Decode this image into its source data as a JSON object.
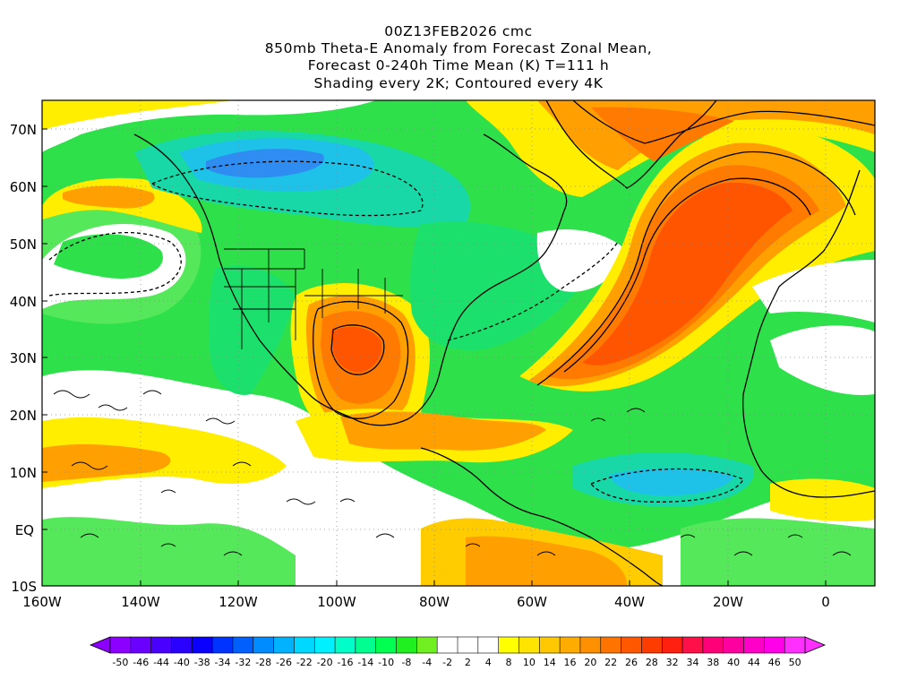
{
  "title": {
    "line1": "00Z13FEB2026 cmc",
    "line2": "850mb Theta-E Anomaly from Forecast Zonal Mean,",
    "line3": "Forecast 0-240h Time Mean (K) T=111 h",
    "line4": "Shading every 2K; Contoured every 4K"
  },
  "map": {
    "lon_range": [
      -160,
      10
    ],
    "lat_range": [
      -10,
      75
    ],
    "lat_labels": [
      "70N",
      "60N",
      "50N",
      "40N",
      "30N",
      "20N",
      "10N",
      "EQ",
      "10S"
    ],
    "lon_labels": [
      "160W",
      "140W",
      "120W",
      "100W",
      "80W",
      "60W",
      "40W",
      "20W",
      "0"
    ]
  },
  "colorbar": {
    "labels": [
      "-50",
      "-46",
      "-44",
      "-40",
      "-38",
      "-34",
      "-32",
      "-28",
      "-26",
      "-22",
      "-20",
      "-16",
      "-14",
      "-10",
      "-8",
      "-4",
      "-2",
      "2",
      "4",
      "8",
      "10",
      "14",
      "16",
      "20",
      "22",
      "26",
      "28",
      "32",
      "34",
      "38",
      "40",
      "44",
      "46",
      "50"
    ],
    "colors": [
      "#8c00ff",
      "#6a00ff",
      "#4a00ff",
      "#2a00ff",
      "#0a00ff",
      "#0033ff",
      "#0060ff",
      "#008cff",
      "#00b2ff",
      "#00d8ff",
      "#00f0ff",
      "#00ffc8",
      "#00ff90",
      "#00ff50",
      "#20f020",
      "#70f020",
      "#ffffff",
      "#ffffff",
      "#ffffff",
      "#ffff00",
      "#ffe400",
      "#ffc800",
      "#ffac00",
      "#ff9000",
      "#ff7400",
      "#ff5800",
      "#ff3c00",
      "#ff2010",
      "#ff1048",
      "#ff0078",
      "#ff00a0",
      "#ff00c8",
      "#ff00e8",
      "#ff30ff"
    ],
    "low_arrow": "#8c00ff",
    "high_arrow": "#ff30ff"
  },
  "field_colors": {
    "ocean_background": "#2ee04a",
    "white_neutral": "#ffffff",
    "cold_light": "#55e85a",
    "cold_mid": "#1ce06c",
    "cold_cyan": "#19d8a8",
    "cold_deep": "#1ec2e8",
    "cold_blue": "#2f8cf0",
    "warm_yellow": "#ffee00",
    "warm_gold": "#ffcc00",
    "warm_orange": "#ffa000",
    "warm_deep": "#ff7a00",
    "warm_red": "#ff5500",
    "warm_hot": "#ff3a00"
  }
}
